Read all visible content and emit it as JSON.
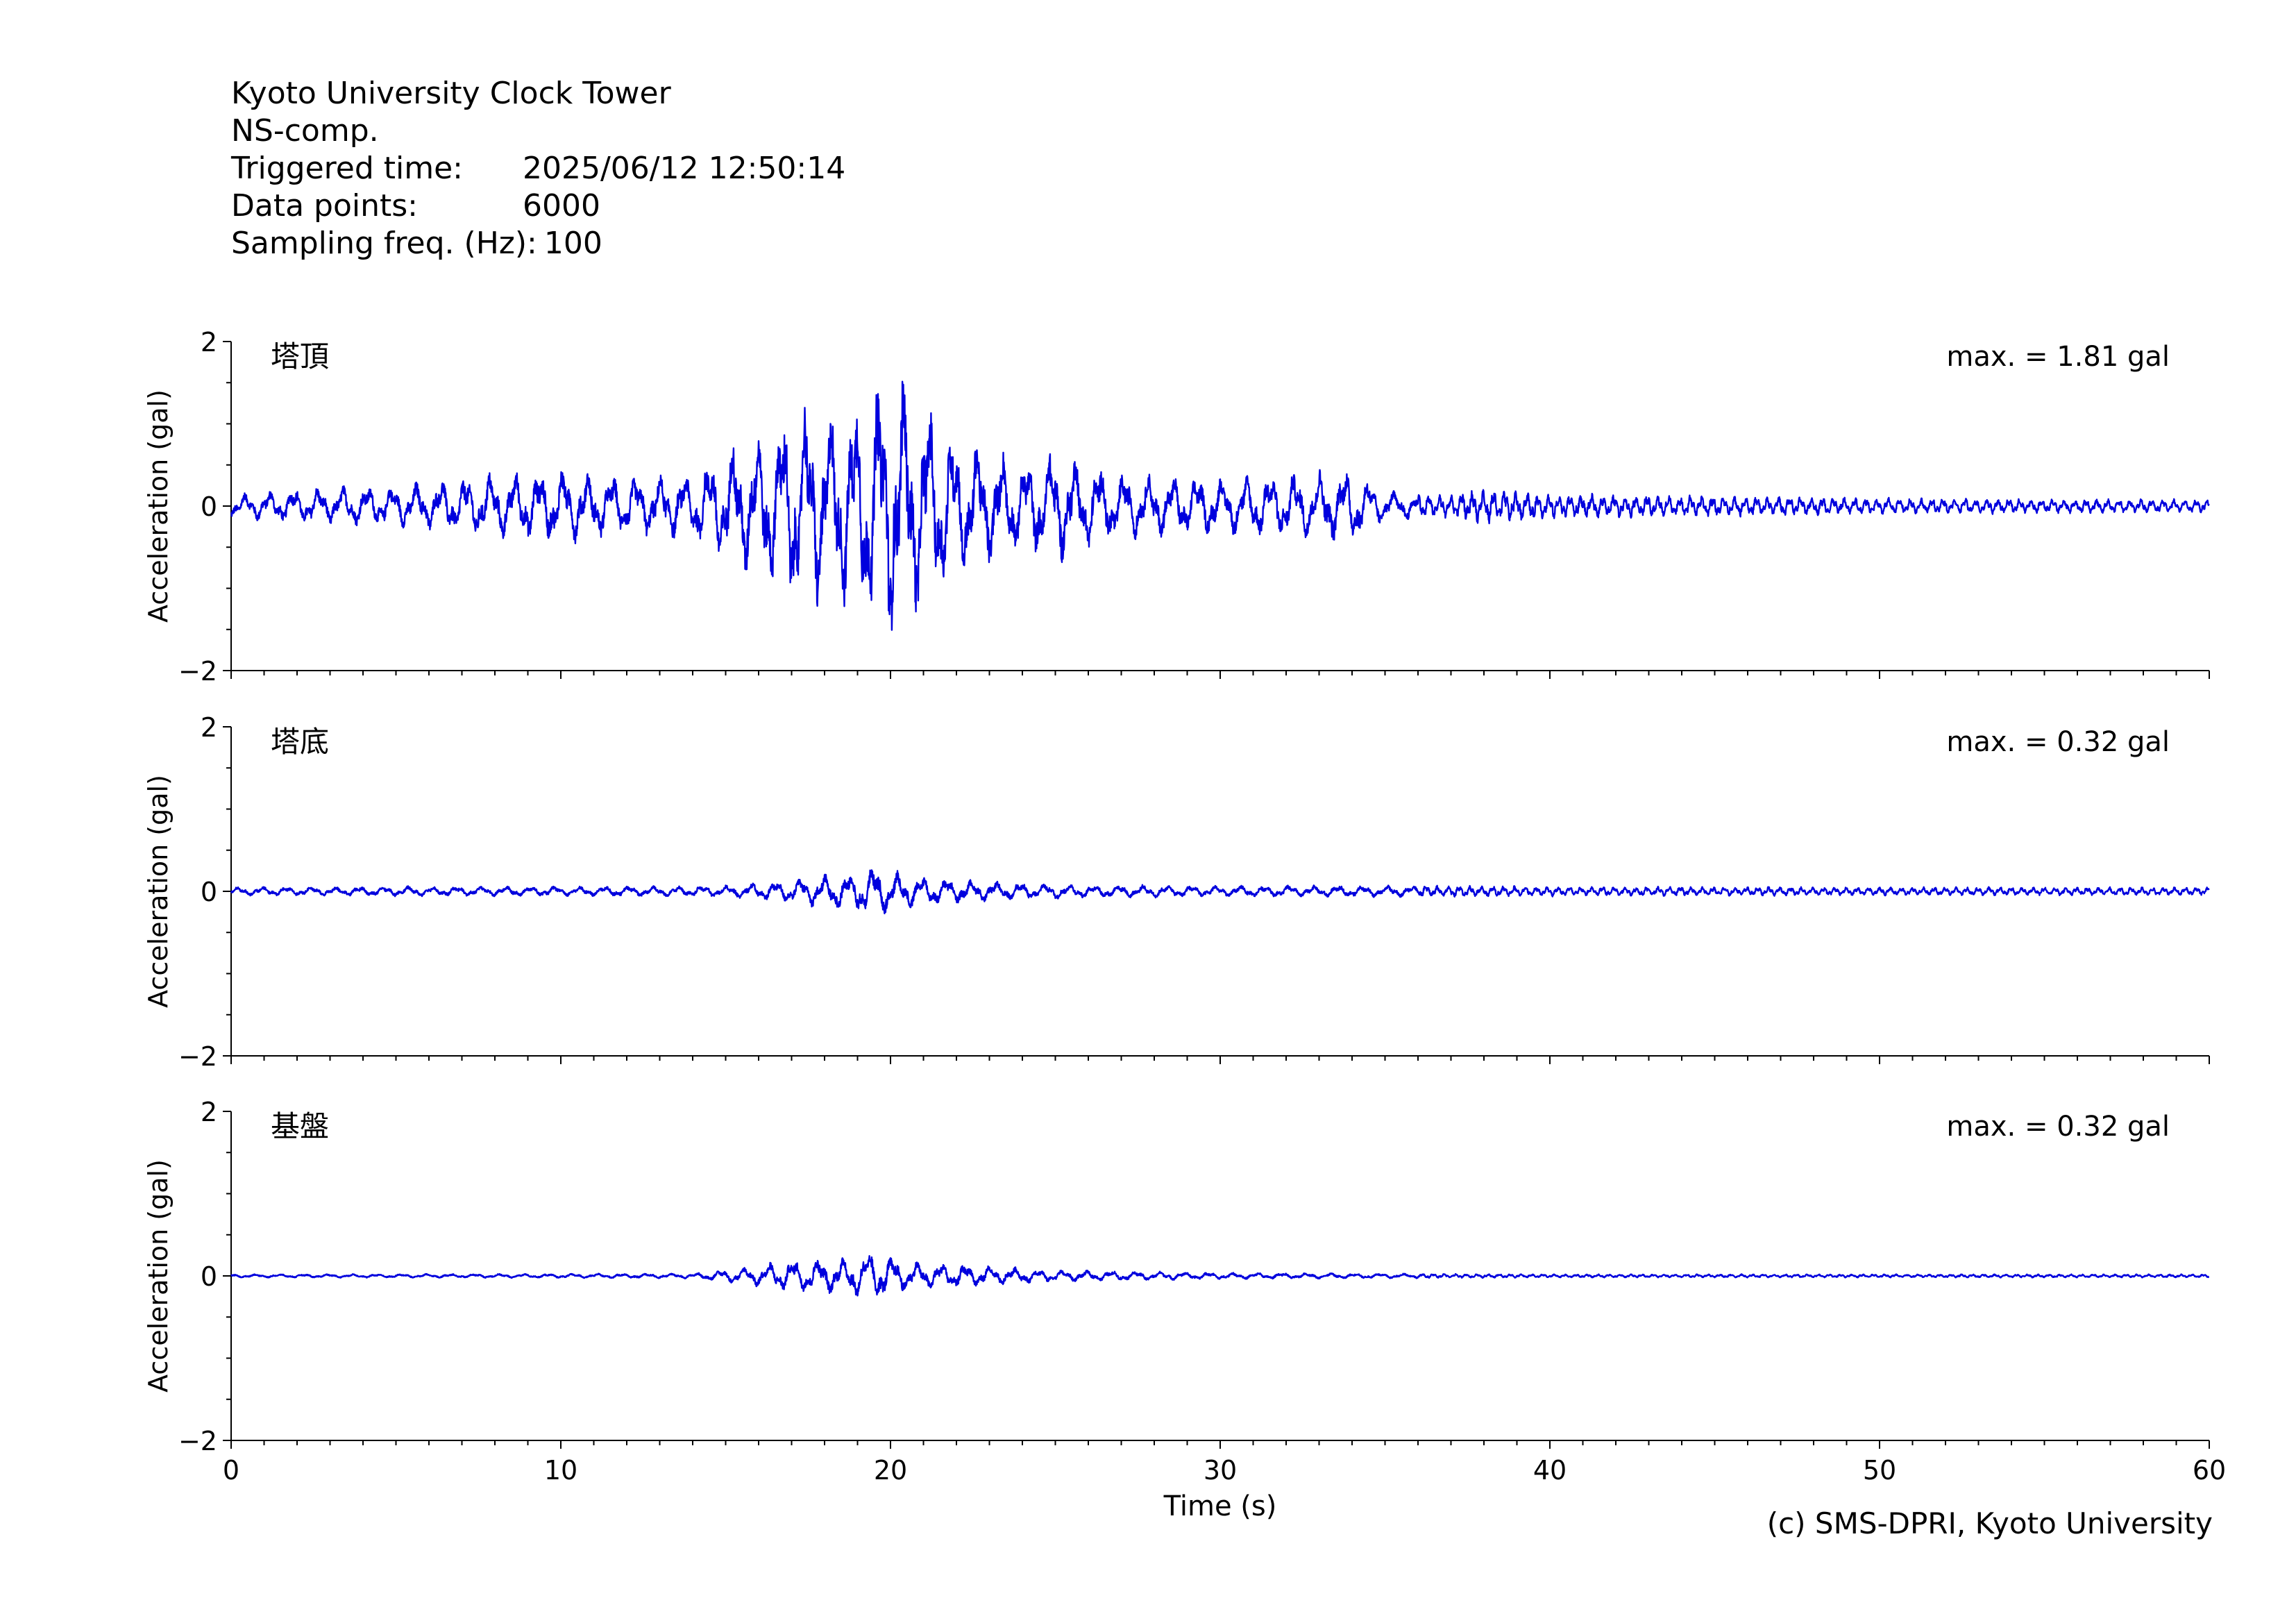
{
  "header": {
    "station": "Kyoto University Clock Tower",
    "component": "NS-comp.",
    "triggered_label": "Triggered time:",
    "triggered_value": "2025/06/12 12:50:14",
    "points_label": "Data points:",
    "points_value": "6000",
    "freq_label": "Sampling freq. (Hz):",
    "freq_value": "100"
  },
  "footer": {
    "copyright": "(c) SMS-DPRI, Kyoto University"
  },
  "colors": {
    "trace": "#0000dd",
    "axis": "#000000"
  },
  "chart_data": {
    "type": "line",
    "xlabel": "Time (s)",
    "xlim": [
      0,
      60
    ],
    "xticks": [
      0,
      10,
      20,
      30,
      40,
      50,
      60
    ],
    "sampling_hz": 100,
    "panels": [
      {
        "name": "塔頂",
        "ylabel": "Acceleration (gal)",
        "ylim": [
          -2,
          2
        ],
        "yticks": [
          -2,
          0,
          2
        ],
        "max_label": "max. = 1.81 gal",
        "peak": 1.81,
        "envelope": [
          [
            0,
            0.14
          ],
          [
            2,
            0.22
          ],
          [
            5,
            0.25
          ],
          [
            8,
            0.4
          ],
          [
            10,
            0.45
          ],
          [
            12,
            0.35
          ],
          [
            14,
            0.4
          ],
          [
            15,
            0.75
          ],
          [
            16.5,
            1.0
          ],
          [
            17,
            1.3
          ],
          [
            18.5,
            1.2
          ],
          [
            20,
            1.7
          ],
          [
            21,
            1.3
          ],
          [
            22,
            0.9
          ],
          [
            24,
            0.55
          ],
          [
            25,
            0.7
          ],
          [
            27,
            0.4
          ],
          [
            30,
            0.35
          ],
          [
            32,
            0.4
          ],
          [
            34,
            0.45
          ],
          [
            35,
            0.18
          ],
          [
            37,
            0.14
          ],
          [
            38,
            0.22
          ],
          [
            40,
            0.15
          ],
          [
            45,
            0.13
          ],
          [
            50,
            0.1
          ],
          [
            60,
            0.08
          ]
        ]
      },
      {
        "name": "塔底",
        "ylabel": "Acceleration (gal)",
        "ylim": [
          -2,
          2
        ],
        "yticks": [
          -2,
          0,
          2
        ],
        "max_label": "max. = 0.32 gal",
        "peak": 0.32,
        "envelope": [
          [
            0,
            0.05
          ],
          [
            5,
            0.06
          ],
          [
            10,
            0.06
          ],
          [
            15,
            0.07
          ],
          [
            17,
            0.14
          ],
          [
            18,
            0.2
          ],
          [
            19.5,
            0.3
          ],
          [
            21,
            0.18
          ],
          [
            23,
            0.12
          ],
          [
            26,
            0.08
          ],
          [
            30,
            0.07
          ],
          [
            37,
            0.07
          ],
          [
            40,
            0.06
          ],
          [
            50,
            0.05
          ],
          [
            60,
            0.05
          ]
        ]
      },
      {
        "name": "基盤",
        "ylabel": "Acceleration (gal)",
        "ylim": [
          -2,
          2
        ],
        "yticks": [
          -2,
          0,
          2
        ],
        "max_label": "max. = 0.32 gal",
        "peak": 0.32,
        "envelope": [
          [
            0,
            0.02
          ],
          [
            10,
            0.025
          ],
          [
            14,
            0.03
          ],
          [
            15.5,
            0.1
          ],
          [
            17,
            0.2
          ],
          [
            18.5,
            0.22
          ],
          [
            19.5,
            0.3
          ],
          [
            20.5,
            0.18
          ],
          [
            22,
            0.15
          ],
          [
            25,
            0.07
          ],
          [
            30,
            0.04
          ],
          [
            35,
            0.03
          ],
          [
            40,
            0.02
          ],
          [
            60,
            0.02
          ]
        ]
      }
    ]
  }
}
